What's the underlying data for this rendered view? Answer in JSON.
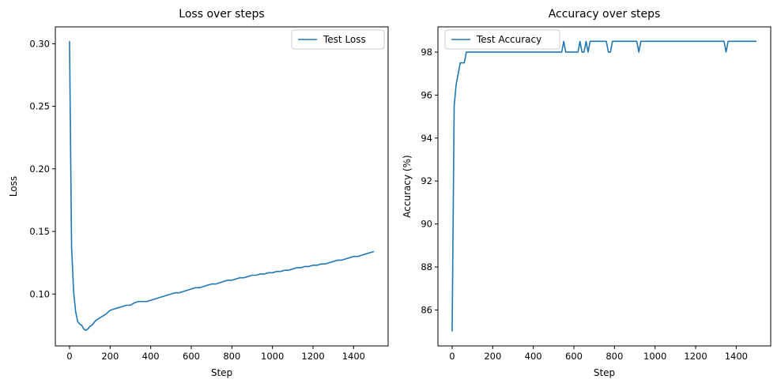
{
  "chart_data": [
    {
      "type": "line",
      "title": "Loss over steps",
      "xlabel": "Step",
      "ylabel": "Loss",
      "xlim": [
        -70,
        1570
      ],
      "ylim": [
        0.0585,
        0.3135
      ],
      "xticks": [
        0,
        200,
        400,
        600,
        800,
        1000,
        1200,
        1400
      ],
      "yticks": [
        0.1,
        0.15,
        0.2,
        0.25,
        0.3
      ],
      "ytick_labels": [
        "0.10",
        "0.15",
        "0.20",
        "0.25",
        "0.30"
      ],
      "grid": false,
      "legend_loc": "upper right",
      "series": [
        {
          "name": "Test Loss",
          "color": "#1f77b4",
          "x": [
            0,
            10,
            20,
            30,
            40,
            50,
            60,
            70,
            80,
            90,
            100,
            110,
            120,
            130,
            140,
            160,
            180,
            200,
            220,
            240,
            260,
            280,
            300,
            320,
            340,
            360,
            380,
            400,
            420,
            440,
            460,
            480,
            500,
            520,
            540,
            560,
            580,
            600,
            620,
            640,
            660,
            680,
            700,
            720,
            740,
            760,
            780,
            800,
            820,
            840,
            860,
            880,
            900,
            920,
            940,
            960,
            980,
            1000,
            1020,
            1040,
            1060,
            1080,
            1100,
            1120,
            1140,
            1160,
            1180,
            1200,
            1220,
            1240,
            1260,
            1280,
            1300,
            1320,
            1340,
            1360,
            1380,
            1400,
            1420,
            1440,
            1460,
            1480,
            1500
          ],
          "y": [
            0.302,
            0.138,
            0.102,
            0.086,
            0.078,
            0.076,
            0.075,
            0.072,
            0.071,
            0.072,
            0.074,
            0.075,
            0.077,
            0.079,
            0.08,
            0.082,
            0.084,
            0.087,
            0.088,
            0.089,
            0.09,
            0.091,
            0.091,
            0.093,
            0.094,
            0.094,
            0.094,
            0.095,
            0.096,
            0.097,
            0.098,
            0.099,
            0.1,
            0.101,
            0.101,
            0.102,
            0.103,
            0.104,
            0.105,
            0.105,
            0.106,
            0.107,
            0.108,
            0.108,
            0.109,
            0.11,
            0.111,
            0.111,
            0.112,
            0.113,
            0.113,
            0.114,
            0.115,
            0.115,
            0.116,
            0.116,
            0.117,
            0.117,
            0.118,
            0.118,
            0.119,
            0.119,
            0.12,
            0.121,
            0.121,
            0.122,
            0.122,
            0.123,
            0.123,
            0.124,
            0.124,
            0.125,
            0.126,
            0.127,
            0.127,
            0.128,
            0.129,
            0.13,
            0.13,
            0.131,
            0.132,
            0.133,
            0.134
          ]
        }
      ]
    },
    {
      "type": "line",
      "title": "Accuracy over steps",
      "xlabel": "Step",
      "ylabel": "Accuracy (%)",
      "xlim": [
        -70,
        1570
      ],
      "ylim": [
        84.325,
        99.175
      ],
      "xticks": [
        0,
        200,
        400,
        600,
        800,
        1000,
        1200,
        1400
      ],
      "yticks": [
        86,
        88,
        90,
        92,
        94,
        96,
        98
      ],
      "ytick_labels": [
        "86",
        "88",
        "90",
        "92",
        "94",
        "96",
        "98"
      ],
      "grid": false,
      "legend_loc": "upper left",
      "series": [
        {
          "name": "Test Accuracy",
          "color": "#1f77b4",
          "x": [
            0,
            10,
            20,
            30,
            40,
            50,
            60,
            70,
            80,
            100,
            200,
            300,
            400,
            500,
            540,
            550,
            560,
            600,
            620,
            630,
            640,
            650,
            660,
            670,
            680,
            700,
            760,
            770,
            780,
            790,
            800,
            900,
            910,
            920,
            930,
            940,
            1000,
            1100,
            1200,
            1300,
            1340,
            1350,
            1360,
            1370,
            1400,
            1500
          ],
          "y": [
            85.0,
            95.5,
            96.5,
            97.0,
            97.5,
            97.5,
            97.5,
            98.0,
            98.0,
            98.0,
            98.0,
            98.0,
            98.0,
            98.0,
            98.0,
            98.5,
            98.0,
            98.0,
            98.0,
            98.5,
            98.0,
            98.0,
            98.5,
            98.0,
            98.5,
            98.5,
            98.5,
            98.0,
            98.0,
            98.5,
            98.5,
            98.5,
            98.5,
            98.0,
            98.5,
            98.5,
            98.5,
            98.5,
            98.5,
            98.5,
            98.5,
            98.0,
            98.5,
            98.5,
            98.5,
            98.5
          ]
        }
      ]
    }
  ]
}
